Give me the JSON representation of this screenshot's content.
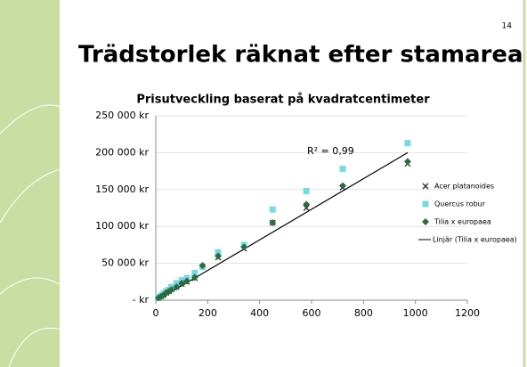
{
  "slide": {
    "number": "14",
    "title": "Trädstorlek räknat efter stamarea"
  },
  "chart_data": {
    "type": "scatter",
    "title": "Prisutveckling baserat på kvadratcentimeter",
    "xlim": [
      0,
      1200
    ],
    "xticks": [
      0,
      200,
      400,
      600,
      800,
      1000,
      1200
    ],
    "ylim": [
      0,
      250000
    ],
    "yticks": [
      {
        "value": 0,
        "label": "-   kr"
      },
      {
        "value": 50000,
        "label": "50 000 kr"
      },
      {
        "value": 100000,
        "label": "100 000 kr"
      },
      {
        "value": 150000,
        "label": "150 000 kr"
      },
      {
        "value": 200000,
        "label": "200 000 kr"
      },
      {
        "value": 250000,
        "label": "250 000 kr"
      }
    ],
    "grid": true,
    "legend": "right",
    "series": [
      {
        "name": "Acer platanoides",
        "color": "#1f2a3a",
        "marker": "x",
        "x": [
          10,
          20,
          30,
          40,
          50,
          60,
          80,
          100,
          120,
          150,
          180,
          240,
          340,
          450,
          580,
          720,
          970
        ],
        "values": [
          3000,
          5000,
          7000,
          10000,
          12000,
          15000,
          18000,
          22000,
          25000,
          30000,
          45000,
          58000,
          70000,
          105000,
          125000,
          153000,
          185000
        ]
      },
      {
        "name": "Quercus robur",
        "color": "#74dbe4",
        "marker": "square",
        "x": [
          10,
          20,
          30,
          40,
          50,
          60,
          80,
          100,
          120,
          150,
          180,
          240,
          340,
          450,
          580,
          720,
          970
        ],
        "values": [
          4000,
          6000,
          9000,
          12000,
          14000,
          18000,
          23000,
          27000,
          30000,
          37000,
          45000,
          65000,
          75000,
          123000,
          148000,
          178000,
          213000
        ]
      },
      {
        "name": "Tilia x europaea",
        "color": "#2e6b3a",
        "marker": "diamond",
        "x": [
          10,
          20,
          30,
          40,
          50,
          60,
          80,
          100,
          120,
          150,
          180,
          240,
          340,
          450,
          580,
          720,
          970
        ],
        "values": [
          3000,
          5000,
          7000,
          10000,
          12000,
          14000,
          18000,
          23000,
          26000,
          31000,
          47000,
          60000,
          72000,
          105000,
          130000,
          155000,
          188000
        ]
      }
    ],
    "trendline": {
      "name": "Linjär (Tilia x europaea)",
      "color": "#000000",
      "x": [
        20,
        970
      ],
      "values": [
        3000,
        200000
      ]
    },
    "annotation": "R² = 0,99"
  }
}
